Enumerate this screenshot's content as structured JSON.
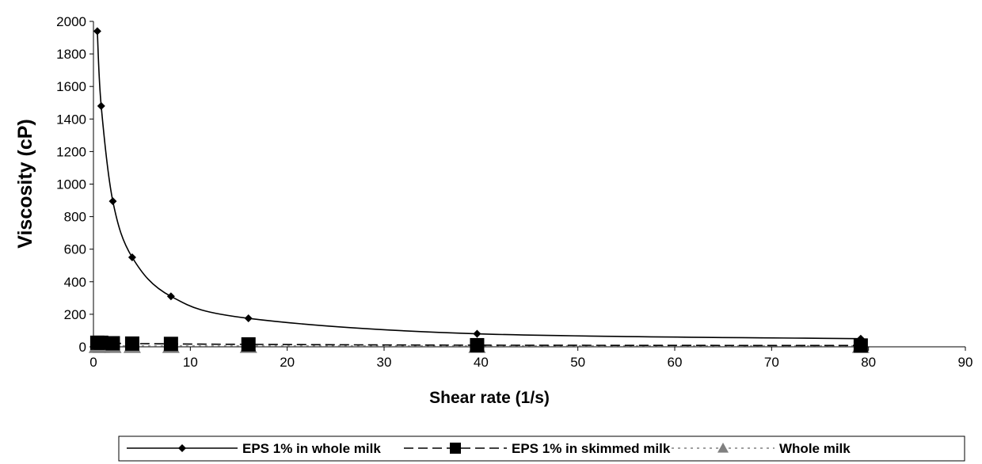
{
  "chart_data": {
    "type": "line",
    "xlabel": "Shear rate (1/s)",
    "ylabel": "Viscosity (cP)",
    "xlim": [
      0,
      90
    ],
    "ylim": [
      0,
      2000
    ],
    "xticks": [
      0,
      10,
      20,
      30,
      40,
      50,
      60,
      70,
      80,
      90
    ],
    "yticks": [
      0,
      200,
      400,
      600,
      800,
      1000,
      1200,
      1400,
      1600,
      1800,
      2000
    ],
    "grid": false,
    "legend_position": "bottom",
    "series": [
      {
        "name": "EPS 1% in whole milk",
        "color": "#000000",
        "line_style": "solid",
        "marker": "diamond",
        "x": [
          0.4,
          0.8,
          2.0,
          4.0,
          8.0,
          16.0,
          39.6,
          79.2
        ],
        "y": [
          1940,
          1480,
          895,
          550,
          310,
          175,
          80,
          50
        ]
      },
      {
        "name": "EPS 1% in skimmed milk",
        "color": "#000000",
        "line_style": "dashed",
        "marker": "square",
        "x": [
          0.4,
          0.8,
          2.0,
          4.0,
          8.0,
          16.0,
          39.6,
          79.2
        ],
        "y": [
          25,
          25,
          22,
          20,
          18,
          15,
          10,
          8
        ]
      },
      {
        "name": "Whole milk",
        "color": "#808080",
        "line_style": "dotted",
        "marker": "triangle",
        "x": [
          0.4,
          0.8,
          2.0,
          4.0,
          8.0,
          16.0,
          39.6,
          79.2
        ],
        "y": [
          5,
          5,
          5,
          5,
          5,
          5,
          5,
          5
        ]
      }
    ]
  }
}
